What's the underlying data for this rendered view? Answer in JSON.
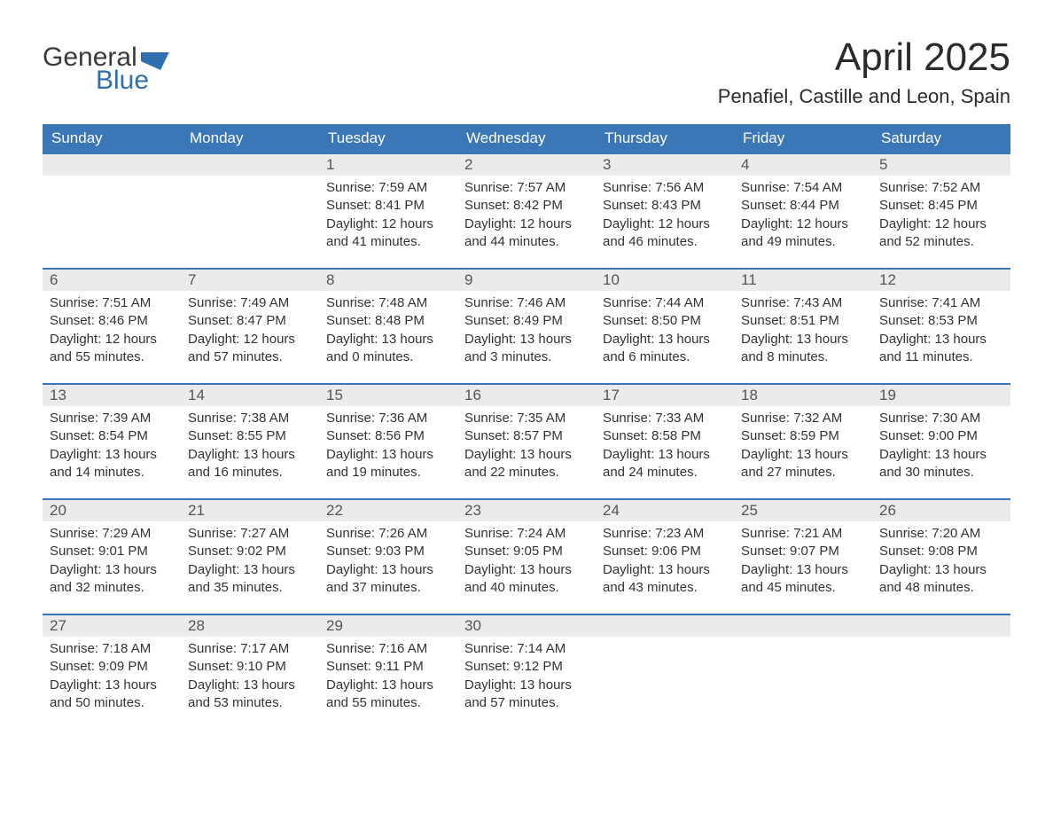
{
  "logo": {
    "word1": "General",
    "word2": "Blue"
  },
  "title": "April 2025",
  "location": "Penafiel, Castille and Leon, Spain",
  "colors": {
    "header_bg": "#3b77b6",
    "header_text": "#ffffff",
    "daynum_bg": "#ebebeb",
    "text": "#333333",
    "logo_blue": "#2f6fb0"
  },
  "day_names": [
    "Sunday",
    "Monday",
    "Tuesday",
    "Wednesday",
    "Thursday",
    "Friday",
    "Saturday"
  ],
  "weeks": [
    [
      null,
      null,
      {
        "n": "1",
        "sunrise": "Sunrise: 7:59 AM",
        "sunset": "Sunset: 8:41 PM",
        "day1": "Daylight: 12 hours",
        "day2": "and 41 minutes."
      },
      {
        "n": "2",
        "sunrise": "Sunrise: 7:57 AM",
        "sunset": "Sunset: 8:42 PM",
        "day1": "Daylight: 12 hours",
        "day2": "and 44 minutes."
      },
      {
        "n": "3",
        "sunrise": "Sunrise: 7:56 AM",
        "sunset": "Sunset: 8:43 PM",
        "day1": "Daylight: 12 hours",
        "day2": "and 46 minutes."
      },
      {
        "n": "4",
        "sunrise": "Sunrise: 7:54 AM",
        "sunset": "Sunset: 8:44 PM",
        "day1": "Daylight: 12 hours",
        "day2": "and 49 minutes."
      },
      {
        "n": "5",
        "sunrise": "Sunrise: 7:52 AM",
        "sunset": "Sunset: 8:45 PM",
        "day1": "Daylight: 12 hours",
        "day2": "and 52 minutes."
      }
    ],
    [
      {
        "n": "6",
        "sunrise": "Sunrise: 7:51 AM",
        "sunset": "Sunset: 8:46 PM",
        "day1": "Daylight: 12 hours",
        "day2": "and 55 minutes."
      },
      {
        "n": "7",
        "sunrise": "Sunrise: 7:49 AM",
        "sunset": "Sunset: 8:47 PM",
        "day1": "Daylight: 12 hours",
        "day2": "and 57 minutes."
      },
      {
        "n": "8",
        "sunrise": "Sunrise: 7:48 AM",
        "sunset": "Sunset: 8:48 PM",
        "day1": "Daylight: 13 hours",
        "day2": "and 0 minutes."
      },
      {
        "n": "9",
        "sunrise": "Sunrise: 7:46 AM",
        "sunset": "Sunset: 8:49 PM",
        "day1": "Daylight: 13 hours",
        "day2": "and 3 minutes."
      },
      {
        "n": "10",
        "sunrise": "Sunrise: 7:44 AM",
        "sunset": "Sunset: 8:50 PM",
        "day1": "Daylight: 13 hours",
        "day2": "and 6 minutes."
      },
      {
        "n": "11",
        "sunrise": "Sunrise: 7:43 AM",
        "sunset": "Sunset: 8:51 PM",
        "day1": "Daylight: 13 hours",
        "day2": "and 8 minutes."
      },
      {
        "n": "12",
        "sunrise": "Sunrise: 7:41 AM",
        "sunset": "Sunset: 8:53 PM",
        "day1": "Daylight: 13 hours",
        "day2": "and 11 minutes."
      }
    ],
    [
      {
        "n": "13",
        "sunrise": "Sunrise: 7:39 AM",
        "sunset": "Sunset: 8:54 PM",
        "day1": "Daylight: 13 hours",
        "day2": "and 14 minutes."
      },
      {
        "n": "14",
        "sunrise": "Sunrise: 7:38 AM",
        "sunset": "Sunset: 8:55 PM",
        "day1": "Daylight: 13 hours",
        "day2": "and 16 minutes."
      },
      {
        "n": "15",
        "sunrise": "Sunrise: 7:36 AM",
        "sunset": "Sunset: 8:56 PM",
        "day1": "Daylight: 13 hours",
        "day2": "and 19 minutes."
      },
      {
        "n": "16",
        "sunrise": "Sunrise: 7:35 AM",
        "sunset": "Sunset: 8:57 PM",
        "day1": "Daylight: 13 hours",
        "day2": "and 22 minutes."
      },
      {
        "n": "17",
        "sunrise": "Sunrise: 7:33 AM",
        "sunset": "Sunset: 8:58 PM",
        "day1": "Daylight: 13 hours",
        "day2": "and 24 minutes."
      },
      {
        "n": "18",
        "sunrise": "Sunrise: 7:32 AM",
        "sunset": "Sunset: 8:59 PM",
        "day1": "Daylight: 13 hours",
        "day2": "and 27 minutes."
      },
      {
        "n": "19",
        "sunrise": "Sunrise: 7:30 AM",
        "sunset": "Sunset: 9:00 PM",
        "day1": "Daylight: 13 hours",
        "day2": "and 30 minutes."
      }
    ],
    [
      {
        "n": "20",
        "sunrise": "Sunrise: 7:29 AM",
        "sunset": "Sunset: 9:01 PM",
        "day1": "Daylight: 13 hours",
        "day2": "and 32 minutes."
      },
      {
        "n": "21",
        "sunrise": "Sunrise: 7:27 AM",
        "sunset": "Sunset: 9:02 PM",
        "day1": "Daylight: 13 hours",
        "day2": "and 35 minutes."
      },
      {
        "n": "22",
        "sunrise": "Sunrise: 7:26 AM",
        "sunset": "Sunset: 9:03 PM",
        "day1": "Daylight: 13 hours",
        "day2": "and 37 minutes."
      },
      {
        "n": "23",
        "sunrise": "Sunrise: 7:24 AM",
        "sunset": "Sunset: 9:05 PM",
        "day1": "Daylight: 13 hours",
        "day2": "and 40 minutes."
      },
      {
        "n": "24",
        "sunrise": "Sunrise: 7:23 AM",
        "sunset": "Sunset: 9:06 PM",
        "day1": "Daylight: 13 hours",
        "day2": "and 43 minutes."
      },
      {
        "n": "25",
        "sunrise": "Sunrise: 7:21 AM",
        "sunset": "Sunset: 9:07 PM",
        "day1": "Daylight: 13 hours",
        "day2": "and 45 minutes."
      },
      {
        "n": "26",
        "sunrise": "Sunrise: 7:20 AM",
        "sunset": "Sunset: 9:08 PM",
        "day1": "Daylight: 13 hours",
        "day2": "and 48 minutes."
      }
    ],
    [
      {
        "n": "27",
        "sunrise": "Sunrise: 7:18 AM",
        "sunset": "Sunset: 9:09 PM",
        "day1": "Daylight: 13 hours",
        "day2": "and 50 minutes."
      },
      {
        "n": "28",
        "sunrise": "Sunrise: 7:17 AM",
        "sunset": "Sunset: 9:10 PM",
        "day1": "Daylight: 13 hours",
        "day2": "and 53 minutes."
      },
      {
        "n": "29",
        "sunrise": "Sunrise: 7:16 AM",
        "sunset": "Sunset: 9:11 PM",
        "day1": "Daylight: 13 hours",
        "day2": "and 55 minutes."
      },
      {
        "n": "30",
        "sunrise": "Sunrise: 7:14 AM",
        "sunset": "Sunset: 9:12 PM",
        "day1": "Daylight: 13 hours",
        "day2": "and 57 minutes."
      },
      null,
      null,
      null
    ]
  ]
}
